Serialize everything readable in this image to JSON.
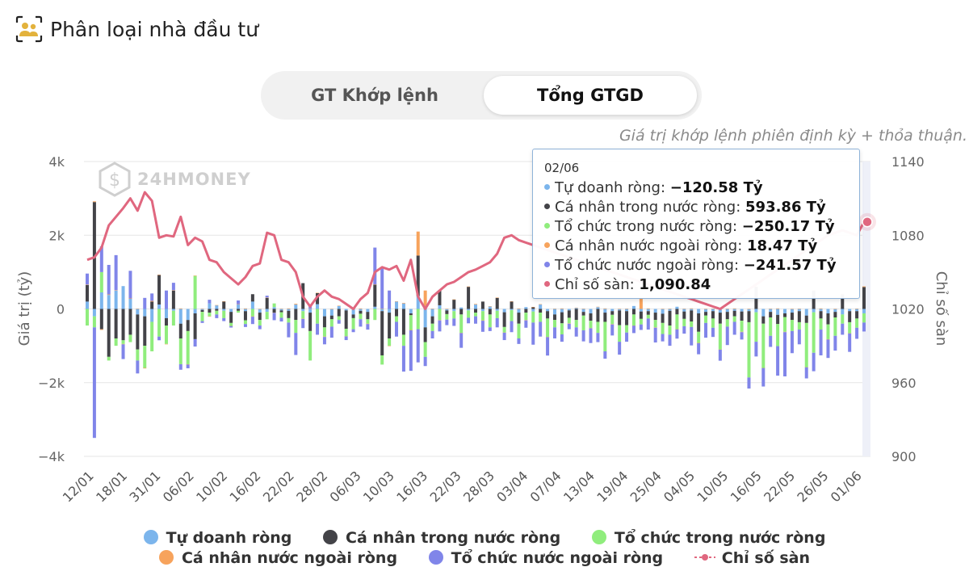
{
  "header": {
    "title": "Phân loại nhà đầu tư",
    "icon": "investors-icon"
  },
  "toggle": {
    "tabs": [
      "GT Khớp lệnh",
      "Tổng GTGD"
    ],
    "active": 1
  },
  "note": "Giá trị khớp lệnh phiên định kỳ + thỏa thuận.",
  "watermark": "24HMONEY",
  "tooltip": {
    "date": "02/06",
    "rows": [
      {
        "label": "Tự doanh ròng: ",
        "value": "−120.58 Tỷ",
        "color": "#7cb5ec"
      },
      {
        "label": "Cá nhân trong nước ròng: ",
        "value": "593.86 Tỷ",
        "color": "#434348"
      },
      {
        "label": "Tổ chức trong nước ròng: ",
        "value": "−250.17 Tỷ",
        "color": "#90ed7d"
      },
      {
        "label": "Cá nhân nước ngoài ròng: ",
        "value": "18.47 Tỷ",
        "color": "#f7a35c"
      },
      {
        "label": "Tổ chức nước ngoài ròng: ",
        "value": "−241.57 Tỷ",
        "color": "#8085e9"
      },
      {
        "label": "Chỉ số sàn: ",
        "value": "1,090.84",
        "color": "#e0677f"
      }
    ]
  },
  "legend": {
    "row1": [
      "Tự doanh ròng",
      "Cá nhân trong nước ròng",
      "Tổ chức trong nước ròng"
    ],
    "row2": [
      "Cá nhân nước ngoài ròng",
      "Tổ chức nước ngoài ròng",
      "Chỉ số sàn"
    ]
  },
  "chart_data": {
    "type": "bar",
    "ylabel": "Giá trị (tỷ)",
    "y2label": "Chỉ số sàn",
    "ylim": [
      -4000,
      4000
    ],
    "y2lim": [
      900,
      1140
    ],
    "yticks": [
      "4k",
      "2k",
      "0",
      "−2k",
      "−4k"
    ],
    "y2ticks": [
      "1140",
      "1080",
      "1020",
      "960",
      "900"
    ],
    "xticks": [
      "12/01",
      "18/01",
      "31/01",
      "06/02",
      "10/02",
      "16/02",
      "22/02",
      "28/02",
      "06/03",
      "10/03",
      "16/03",
      "22/03",
      "28/03",
      "03/04",
      "07/04",
      "13/04",
      "19/04",
      "25/04",
      "04/05",
      "10/05",
      "16/05",
      "22/05",
      "26/05",
      "01/06"
    ],
    "colors": {
      "tu_doanh": "#7cb5ec",
      "ca_nhan_tn": "#434348",
      "to_chuc_tn": "#90ed7d",
      "ca_nhan_nn": "#f7a35c",
      "to_chuc_nn": "#8085e9",
      "index": "#e0677f"
    },
    "series": [
      {
        "name": "Tự doanh ròng",
        "values": [
          200,
          -200,
          450,
          380,
          500,
          620,
          280,
          -150,
          -200,
          -350,
          120,
          -250,
          -50,
          -400,
          -300,
          -120,
          -30,
          150,
          100,
          -50,
          -80,
          120,
          -60,
          200,
          -100,
          -80,
          50,
          -40,
          -50,
          120,
          -60,
          -100,
          130,
          -200,
          -180,
          80,
          -40,
          -150,
          -50,
          -80,
          60,
          -60,
          -100,
          200,
          150,
          -120,
          350,
          -500,
          -200,
          100,
          -40,
          -60,
          40,
          -40,
          120,
          -60,
          70,
          -50,
          -90,
          -30,
          -100,
          50,
          -70,
          120,
          -60,
          -150,
          -90,
          -40,
          30,
          -80,
          -120,
          50,
          -100,
          -60,
          -40,
          -60,
          80,
          -70,
          -60,
          -100,
          -130,
          -50,
          60,
          -70,
          -40,
          -120,
          -80,
          -60,
          -100,
          -80,
          -50,
          -70,
          -60,
          -90,
          -200,
          -80,
          -160,
          -120,
          -100,
          -60,
          -180,
          -90,
          -60,
          -120,
          -80,
          -150,
          -60,
          -60,
          -120
        ]
      },
      {
        "name": "Cá nhân trong nước ròng",
        "values": [
          450,
          2900,
          -550,
          -1300,
          -800,
          -850,
          -700,
          -950,
          -800,
          200,
          800,
          -200,
          500,
          -400,
          -300,
          -700,
          -50,
          -100,
          -50,
          200,
          -300,
          -50,
          -250,
          200,
          -200,
          300,
          -100,
          -50,
          -200,
          -300,
          700,
          -500,
          300,
          -300,
          -100,
          -200,
          -500,
          -100,
          -80,
          -200,
          600,
          -1200,
          -700,
          -200,
          -700,
          -50,
          1100,
          -400,
          -200,
          400,
          -100,
          250,
          -150,
          600,
          -100,
          200,
          -150,
          300,
          -400,
          200,
          -300,
          -100,
          50,
          -100,
          -200,
          -150,
          -300,
          -200,
          -300,
          -100,
          -200,
          -350,
          -250,
          -100,
          -400,
          -380,
          -150,
          -200,
          -100,
          -200,
          -250,
          -400,
          -150,
          -200,
          -300,
          -500,
          -100,
          -200,
          -300,
          -200,
          -150,
          -250,
          -300,
          600,
          -200,
          -150,
          -250,
          -100,
          -200,
          -300,
          -200,
          500,
          -200,
          -300,
          -150,
          400,
          -300,
          -200,
          594
        ]
      },
      {
        "name": "Tổ chức trong nước ròng",
        "values": [
          -450,
          -300,
          550,
          -100,
          -200,
          -100,
          -200,
          -300,
          -600,
          -800,
          -750,
          -500,
          -400,
          -700,
          -900,
          900,
          -250,
          -100,
          -100,
          -200,
          -80,
          -50,
          -100,
          -200,
          -150,
          -200,
          100,
          -150,
          -120,
          -350,
          -200,
          -800,
          -400,
          -250,
          -200,
          -100,
          -200,
          -300,
          -150,
          -120,
          -300,
          -250,
          -200,
          -150,
          -300,
          -400,
          -550,
          -400,
          -200,
          -300,
          -150,
          -200,
          -500,
          -200,
          -100,
          -250,
          -350,
          -200,
          -150,
          -300,
          -400,
          -200,
          -300,
          -250,
          -500,
          -200,
          -300,
          -150,
          -200,
          -400,
          -200,
          -300,
          -800,
          -250,
          -450,
          -200,
          -300,
          -150,
          -100,
          -200,
          -300,
          -250,
          -400,
          -200,
          -150,
          -300,
          -200,
          -250,
          -700,
          -200,
          -150,
          -300,
          -1500,
          -800,
          -1200,
          -500,
          -600,
          -400,
          -300,
          -200,
          -1200,
          -1100,
          -300,
          -400,
          -500,
          -250,
          -300,
          -250,
          -250
        ]
      },
      {
        "name": "Cá nhân nước ngoài ròng",
        "values": [
          10,
          20,
          -20,
          15,
          10,
          -10,
          5,
          10,
          -15,
          20,
          10,
          -5,
          10,
          15,
          -10,
          5,
          10,
          -10,
          5,
          10,
          -5,
          10,
          15,
          -10,
          5,
          10,
          -5,
          10,
          15,
          20,
          -10,
          5,
          10,
          -10,
          5,
          10,
          -5,
          10,
          15,
          -10,
          5,
          10,
          -5,
          10,
          15,
          -10,
          650,
          500,
          10,
          -10,
          5,
          10,
          -5,
          10,
          15,
          -10,
          5,
          10,
          -5,
          10,
          15,
          -10,
          5,
          10,
          -5,
          10,
          15,
          -10,
          5,
          10,
          -5,
          10,
          15,
          -10,
          5,
          10,
          -5,
          300,
          15,
          -10,
          5,
          10,
          -5,
          10,
          15,
          -10,
          5,
          10,
          -5,
          10,
          15,
          -10,
          5,
          10,
          -5,
          10,
          15,
          -10,
          5,
          10,
          -5,
          10,
          15,
          -10,
          5,
          10,
          -5,
          10,
          18
        ]
      },
      {
        "name": "Tổ chức nước ngoài ròng",
        "values": [
          300,
          -3000,
          700,
          800,
          950,
          -400,
          750,
          -350,
          300,
          200,
          -100,
          500,
          200,
          -150,
          -100,
          -200,
          -50,
          100,
          -100,
          -80,
          -40,
          100,
          -80,
          -200,
          -100,
          50,
          -200,
          -100,
          -400,
          -600,
          -250,
          100,
          -300,
          -200,
          -300,
          -100,
          -100,
          -80,
          -200,
          -150,
          1000,
          1100,
          500,
          -400,
          -700,
          -1100,
          -900,
          -250,
          -200,
          -300,
          -150,
          -200,
          -400,
          -150,
          -200,
          -300,
          -100,
          -250,
          -200,
          -300,
          -150,
          -200,
          -600,
          -400,
          -500,
          -300,
          -200,
          -150,
          -250,
          -300,
          -400,
          -250,
          -200,
          -300,
          -350,
          -250,
          -200,
          -150,
          -300,
          -400,
          -200,
          -300,
          -250,
          -200,
          -500,
          -300,
          -400,
          -250,
          -300,
          -500,
          -350,
          -200,
          -300,
          -400,
          -500,
          -300,
          -800,
          -1200,
          -600,
          -400,
          -300,
          -500,
          -700,
          -500,
          -400,
          -300,
          -500,
          -300,
          -242
        ]
      }
    ],
    "index": [
      1060,
      1062,
      1070,
      1088,
      1095,
      1102,
      1110,
      1100,
      1115,
      1108,
      1078,
      1080,
      1079,
      1095,
      1072,
      1078,
      1075,
      1060,
      1058,
      1050,
      1045,
      1040,
      1046,
      1055,
      1057,
      1082,
      1080,
      1060,
      1058,
      1050,
      1030,
      1022,
      1030,
      1035,
      1030,
      1028,
      1024,
      1020,
      1028,
      1033,
      1050,
      1054,
      1052,
      1055,
      1043,
      1060,
      1030,
      1020,
      1030,
      1035,
      1040,
      1042,
      1046,
      1050,
      1052,
      1055,
      1058,
      1065,
      1078,
      1080,
      1076,
      1074,
      1072,
      1070,
      1068,
      1066,
      1064,
      1062,
      1060,
      1058,
      1056,
      1054,
      1052,
      1050,
      1048,
      1046,
      1044,
      1042,
      1040,
      1038,
      1036,
      1034,
      1032,
      1030,
      1028,
      1026,
      1024,
      1022,
      1020,
      1024,
      1028,
      1032,
      1036,
      1040,
      1044,
      1048,
      1052,
      1056,
      1060,
      1064,
      1068,
      1072,
      1076,
      1080,
      1082,
      1084,
      1082,
      1080,
      1090.84
    ]
  }
}
